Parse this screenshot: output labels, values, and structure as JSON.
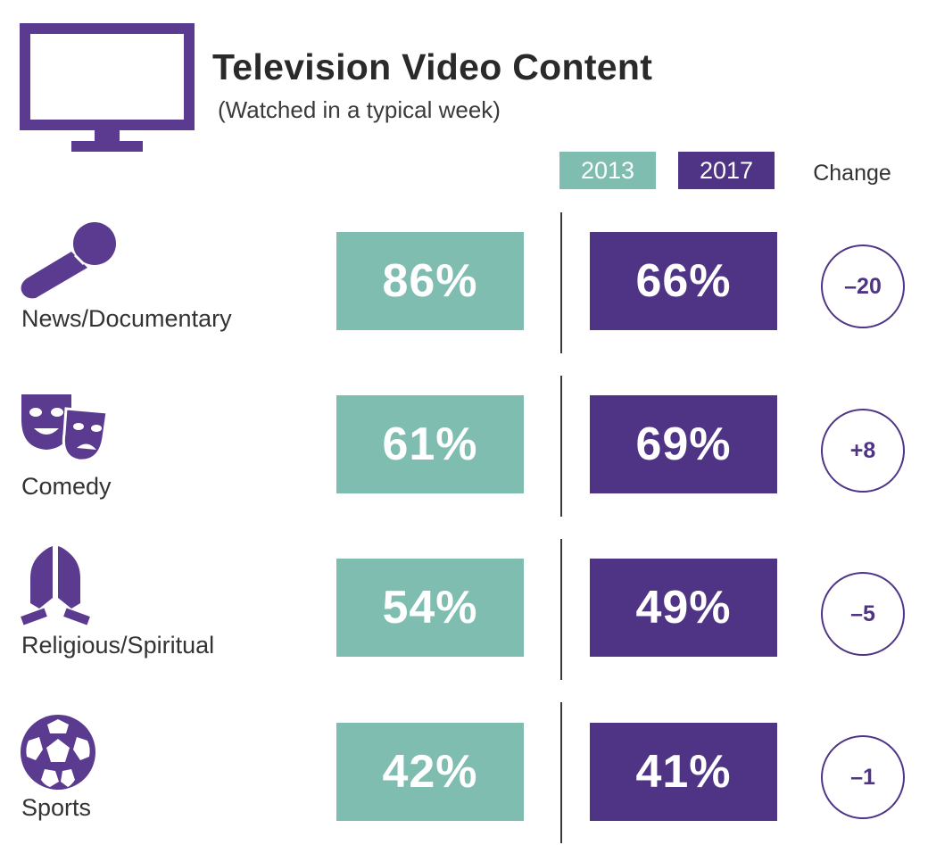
{
  "header": {
    "title": "Television Video Content",
    "subtitle": "(Watched in a typical week)",
    "icon": "television-icon"
  },
  "columns": {
    "year1": "2013",
    "year2": "2017",
    "change": "Change"
  },
  "colors": {
    "teal_2013": "#7ebdb0",
    "purple_2017": "#4f3486",
    "icon_purple": "#5a3b90"
  },
  "rows": [
    {
      "category": "News/Documentary",
      "icon": "microphone-icon",
      "v2013": "86%",
      "v2017": "66%",
      "change": "–20"
    },
    {
      "category": "Comedy",
      "icon": "theater-masks-icon",
      "v2013": "61%",
      "v2017": "69%",
      "change": "+8"
    },
    {
      "category": "Religious/Spiritual",
      "icon": "praying-hands-icon",
      "v2013": "54%",
      "v2017": "49%",
      "change": "–5"
    },
    {
      "category": "Sports",
      "icon": "soccer-ball-icon",
      "v2013": "42%",
      "v2017": "41%",
      "change": "–1"
    }
  ],
  "chart_data": {
    "type": "table",
    "title": "Television Video Content",
    "subtitle": "(Watched in a typical week)",
    "columns": [
      "2013",
      "2017",
      "Change"
    ],
    "categories": [
      "News/Documentary",
      "Comedy",
      "Religious/Spiritual",
      "Sports"
    ],
    "series": [
      {
        "name": "2013",
        "values": [
          86,
          61,
          54,
          42
        ]
      },
      {
        "name": "2017",
        "values": [
          66,
          69,
          49,
          41
        ]
      },
      {
        "name": "Change",
        "values": [
          -20,
          8,
          -5,
          -1
        ]
      }
    ]
  }
}
